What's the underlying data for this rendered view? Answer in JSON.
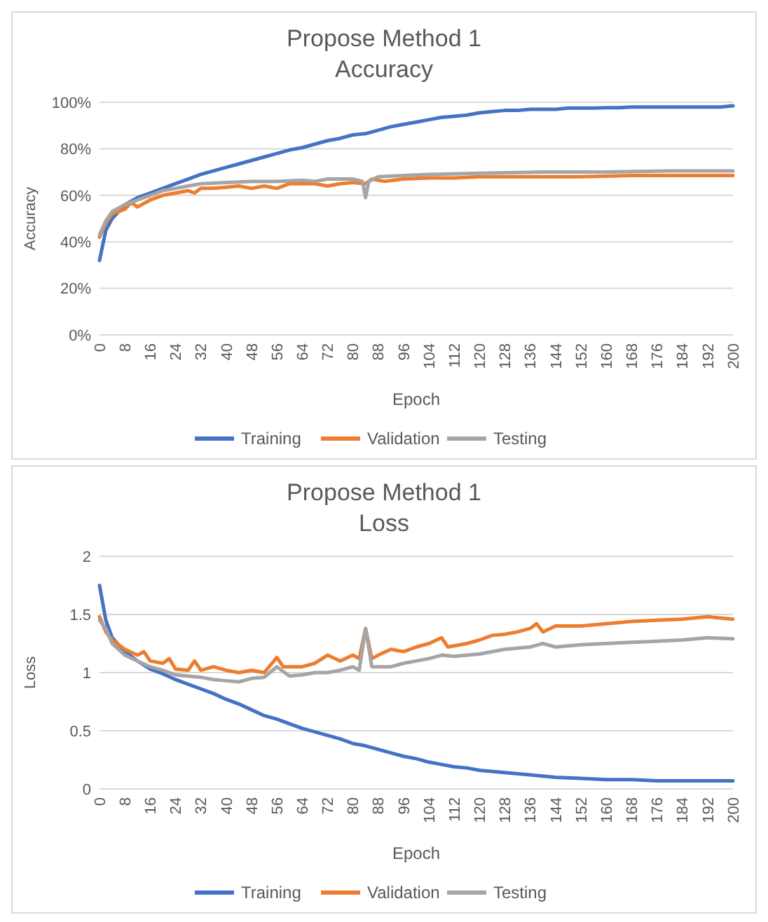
{
  "chart_data": [
    {
      "type": "line",
      "title": "Propose Method 1\nAccuracy",
      "xlabel": "Epoch",
      "ylabel": "Accuracy",
      "xlim": [
        0,
        200
      ],
      "xticks": [
        0,
        8,
        16,
        24,
        32,
        40,
        48,
        56,
        64,
        72,
        80,
        88,
        96,
        104,
        112,
        120,
        128,
        136,
        144,
        152,
        160,
        168,
        176,
        184,
        192,
        200
      ],
      "ylim": [
        0,
        100
      ],
      "yticks": [
        {
          "value": 0,
          "label": "0%"
        },
        {
          "value": 20,
          "label": "20%"
        },
        {
          "value": 40,
          "label": "40%"
        },
        {
          "value": 60,
          "label": "60%"
        },
        {
          "value": 80,
          "label": "80%"
        },
        {
          "value": 100,
          "label": "100%"
        }
      ],
      "grid": "y",
      "legend": "bottom",
      "marker": "none",
      "line_style": "solid",
      "series": [
        {
          "name": "Training",
          "color": "#4472c4",
          "x": [
            0,
            2,
            4,
            8,
            12,
            16,
            20,
            24,
            28,
            32,
            36,
            40,
            44,
            48,
            52,
            56,
            60,
            64,
            68,
            72,
            76,
            80,
            84,
            88,
            92,
            96,
            100,
            104,
            108,
            112,
            116,
            120,
            124,
            128,
            132,
            136,
            140,
            144,
            148,
            152,
            156,
            160,
            164,
            168,
            172,
            176,
            180,
            184,
            188,
            192,
            196,
            200
          ],
          "values": [
            32,
            45,
            50,
            56,
            59,
            61,
            63,
            65,
            67,
            69,
            70.5,
            72,
            73.5,
            75,
            76.5,
            78,
            79.5,
            80.5,
            82,
            83.5,
            84.5,
            86,
            86.5,
            88,
            89.5,
            90.5,
            91.5,
            92.5,
            93.5,
            94,
            94.5,
            95.5,
            96,
            96.5,
            96.5,
            97,
            97,
            97,
            97.5,
            97.5,
            97.5,
            97.7,
            97.7,
            98,
            98,
            98,
            98,
            98,
            98,
            98,
            98,
            98.5
          ]
        },
        {
          "name": "Validation",
          "color": "#ed7d31",
          "x": [
            0,
            2,
            4,
            8,
            10,
            12,
            16,
            20,
            24,
            28,
            30,
            32,
            36,
            40,
            44,
            48,
            52,
            56,
            60,
            64,
            68,
            72,
            76,
            80,
            84,
            86,
            90,
            96,
            104,
            112,
            120,
            136,
            152,
            168,
            184,
            200
          ],
          "values": [
            42,
            48,
            52,
            54,
            57,
            55,
            58,
            60,
            61,
            62,
            61,
            63,
            63,
            63.5,
            64,
            63,
            64,
            63,
            65,
            65,
            65,
            64,
            65,
            65.5,
            65,
            67,
            66,
            67,
            67.5,
            67.5,
            68,
            68,
            68,
            68.5,
            68.5,
            68.5
          ]
        },
        {
          "name": "Testing",
          "color": "#a5a5a5",
          "x": [
            0,
            2,
            4,
            8,
            12,
            16,
            20,
            24,
            28,
            32,
            40,
            48,
            56,
            64,
            68,
            72,
            80,
            83,
            84,
            85,
            88,
            96,
            104,
            120,
            140,
            160,
            180,
            200
          ],
          "values": [
            43,
            49,
            53,
            56,
            58,
            60,
            62,
            63,
            64,
            65,
            65.5,
            66,
            66,
            66.5,
            66,
            67,
            67,
            66,
            59,
            66,
            68,
            68.5,
            69,
            69.5,
            70,
            70,
            70.5,
            70.5
          ]
        }
      ]
    },
    {
      "type": "line",
      "title": "Propose Method 1\nLoss",
      "xlabel": "Epoch",
      "ylabel": "Loss",
      "xlim": [
        0,
        200
      ],
      "xticks": [
        0,
        8,
        16,
        24,
        32,
        40,
        48,
        56,
        64,
        72,
        80,
        88,
        96,
        104,
        112,
        120,
        128,
        136,
        144,
        152,
        160,
        168,
        176,
        184,
        192,
        200
      ],
      "ylim": [
        0,
        2
      ],
      "yticks": [
        0,
        0.5,
        1,
        1.5,
        2
      ],
      "grid": "y",
      "legend": "bottom",
      "marker": "none",
      "line_style": "solid",
      "series": [
        {
          "name": "Training",
          "color": "#4472c4",
          "x": [
            0,
            2,
            4,
            8,
            12,
            16,
            20,
            24,
            28,
            32,
            36,
            40,
            44,
            48,
            52,
            56,
            60,
            64,
            68,
            72,
            76,
            80,
            84,
            88,
            92,
            96,
            100,
            104,
            108,
            112,
            116,
            120,
            128,
            136,
            144,
            152,
            160,
            168,
            176,
            184,
            200
          ],
          "values": [
            1.75,
            1.45,
            1.3,
            1.18,
            1.1,
            1.03,
            0.99,
            0.94,
            0.9,
            0.86,
            0.82,
            0.77,
            0.73,
            0.68,
            0.63,
            0.6,
            0.56,
            0.52,
            0.49,
            0.46,
            0.43,
            0.39,
            0.37,
            0.34,
            0.31,
            0.28,
            0.26,
            0.23,
            0.21,
            0.19,
            0.18,
            0.16,
            0.14,
            0.12,
            0.1,
            0.09,
            0.08,
            0.08,
            0.07,
            0.07,
            0.07
          ]
        },
        {
          "name": "Validation",
          "color": "#ed7d31",
          "x": [
            0,
            2,
            4,
            8,
            12,
            14,
            16,
            20,
            22,
            24,
            28,
            30,
            32,
            36,
            40,
            44,
            48,
            52,
            56,
            58,
            64,
            68,
            72,
            76,
            80,
            82,
            84,
            86,
            88,
            92,
            96,
            100,
            104,
            108,
            110,
            116,
            120,
            124,
            128,
            132,
            136,
            138,
            140,
            144,
            152,
            160,
            168,
            176,
            184,
            192,
            200
          ],
          "values": [
            1.48,
            1.35,
            1.28,
            1.2,
            1.15,
            1.18,
            1.1,
            1.08,
            1.12,
            1.03,
            1.02,
            1.1,
            1.02,
            1.05,
            1.02,
            1.0,
            1.02,
            1.0,
            1.13,
            1.05,
            1.05,
            1.08,
            1.15,
            1.1,
            1.15,
            1.12,
            1.38,
            1.12,
            1.15,
            1.2,
            1.18,
            1.22,
            1.25,
            1.3,
            1.22,
            1.25,
            1.28,
            1.32,
            1.33,
            1.35,
            1.38,
            1.42,
            1.35,
            1.4,
            1.4,
            1.42,
            1.44,
            1.45,
            1.46,
            1.48,
            1.46
          ]
        },
        {
          "name": "Testing",
          "color": "#a5a5a5",
          "x": [
            0,
            2,
            4,
            8,
            12,
            16,
            20,
            24,
            28,
            32,
            36,
            40,
            44,
            48,
            52,
            56,
            60,
            64,
            68,
            72,
            76,
            80,
            82,
            84,
            86,
            92,
            96,
            100,
            104,
            108,
            112,
            120,
            128,
            136,
            140,
            144,
            152,
            160,
            168,
            176,
            184,
            192,
            200
          ],
          "values": [
            1.45,
            1.38,
            1.25,
            1.15,
            1.1,
            1.05,
            1.02,
            0.98,
            0.97,
            0.96,
            0.94,
            0.93,
            0.92,
            0.95,
            0.96,
            1.05,
            0.97,
            0.98,
            1.0,
            1.0,
            1.02,
            1.05,
            1.02,
            1.38,
            1.05,
            1.05,
            1.08,
            1.1,
            1.12,
            1.15,
            1.14,
            1.16,
            1.2,
            1.22,
            1.25,
            1.22,
            1.24,
            1.25,
            1.26,
            1.27,
            1.28,
            1.3,
            1.29
          ]
        }
      ]
    }
  ]
}
